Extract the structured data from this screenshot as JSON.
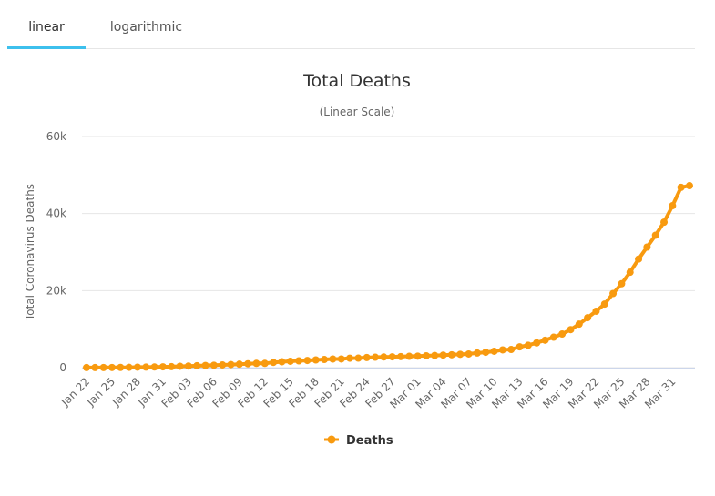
{
  "tabs": [
    {
      "label": "linear",
      "active": true
    },
    {
      "label": "logarithmic",
      "active": false
    }
  ],
  "colors": {
    "series": "#f89a0f",
    "tab_accent": "#3dc0ed",
    "grid": "#e6e6e6",
    "text": "#666666"
  },
  "chart_data": {
    "type": "line",
    "title": "Total Deaths",
    "subtitle": "(Linear Scale)",
    "ylabel": "Total Coronavirus Deaths",
    "xlabel": "",
    "ylim": [
      0,
      60000
    ],
    "yticks": [
      0,
      20000,
      40000,
      60000
    ],
    "ytick_labels": [
      "0",
      "20k",
      "40k",
      "60k"
    ],
    "grid": true,
    "legend_position": "bottom-center",
    "x_tick_labels": [
      "Jan 22",
      "Jan 25",
      "Jan 28",
      "Jan 31",
      "Feb 03",
      "Feb 06",
      "Feb 09",
      "Feb 12",
      "Feb 15",
      "Feb 18",
      "Feb 21",
      "Feb 24",
      "Feb 27",
      "Mar 01",
      "Mar 04",
      "Mar 07",
      "Mar 10",
      "Mar 13",
      "Mar 16",
      "Mar 19",
      "Mar 22",
      "Mar 25",
      "Mar 28",
      "Mar 31"
    ],
    "x": [
      "Jan 22",
      "Jan 23",
      "Jan 24",
      "Jan 25",
      "Jan 26",
      "Jan 27",
      "Jan 28",
      "Jan 29",
      "Jan 30",
      "Jan 31",
      "Feb 01",
      "Feb 02",
      "Feb 03",
      "Feb 04",
      "Feb 05",
      "Feb 06",
      "Feb 07",
      "Feb 08",
      "Feb 09",
      "Feb 10",
      "Feb 11",
      "Feb 12",
      "Feb 13",
      "Feb 14",
      "Feb 15",
      "Feb 16",
      "Feb 17",
      "Feb 18",
      "Feb 19",
      "Feb 20",
      "Feb 21",
      "Feb 22",
      "Feb 23",
      "Feb 24",
      "Feb 25",
      "Feb 26",
      "Feb 27",
      "Feb 28",
      "Feb 29",
      "Mar 01",
      "Mar 02",
      "Mar 03",
      "Mar 04",
      "Mar 05",
      "Mar 06",
      "Mar 07",
      "Mar 08",
      "Mar 09",
      "Mar 10",
      "Mar 11",
      "Mar 12",
      "Mar 13",
      "Mar 14",
      "Mar 15",
      "Mar 16",
      "Mar 17",
      "Mar 18",
      "Mar 19",
      "Mar 20",
      "Mar 21",
      "Mar 22",
      "Mar 23",
      "Mar 24",
      "Mar 25",
      "Mar 26",
      "Mar 27",
      "Mar 28",
      "Mar 29",
      "Mar 30",
      "Mar 31",
      "Apr 01",
      "Apr 02"
    ],
    "series": [
      {
        "name": "Deaths",
        "values": [
          17,
          18,
          26,
          42,
          56,
          82,
          131,
          133,
          171,
          213,
          259,
          362,
          426,
          492,
          564,
          634,
          719,
          806,
          906,
          1013,
          1113,
          1118,
          1371,
          1523,
          1666,
          1770,
          1868,
          2007,
          2122,
          2247,
          2251,
          2458,
          2469,
          2629,
          2708,
          2770,
          2814,
          2872,
          2941,
          2996,
          3085,
          3160,
          3254,
          3348,
          3460,
          3558,
          3803,
          3996,
          4262,
          4615,
          4720,
          5404,
          5819,
          6440,
          7126,
          7905,
          8733,
          9867,
          11299,
          12973,
          14651,
          16505,
          19250,
          21786,
          24767,
          28178,
          31299,
          34380,
          37769,
          42041,
          46799,
          47235
        ]
      }
    ]
  }
}
